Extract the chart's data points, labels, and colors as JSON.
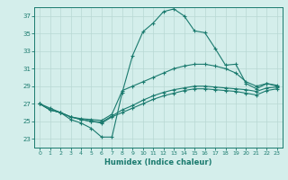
{
  "title": "",
  "xlabel": "Humidex (Indice chaleur)",
  "ylabel": "",
  "bg_color": "#d4eeeb",
  "line_color": "#1a7a6e",
  "grid_color": "#b8d8d4",
  "xlim": [
    -0.5,
    23.5
  ],
  "ylim": [
    22,
    38
  ],
  "yticks": [
    23,
    25,
    27,
    29,
    31,
    33,
    35,
    37
  ],
  "xticks": [
    0,
    1,
    2,
    3,
    4,
    5,
    6,
    7,
    8,
    9,
    10,
    11,
    12,
    13,
    14,
    15,
    16,
    17,
    18,
    19,
    20,
    21,
    22,
    23
  ],
  "series": [
    {
      "x": [
        0,
        1,
        2,
        3,
        4,
        5,
        6,
        7,
        8,
        9,
        10,
        11,
        12,
        13,
        14,
        15,
        16,
        17,
        18,
        19,
        20,
        21,
        22,
        23
      ],
      "y": [
        27,
        26.5,
        26,
        25.2,
        24.8,
        24.2,
        23.2,
        23.2,
        28.3,
        32.5,
        35.2,
        36.2,
        37.5,
        37.8,
        37.0,
        35.3,
        35.1,
        33.3,
        31.4,
        31.5,
        29.3,
        28.7,
        29.3,
        29.0
      ]
    },
    {
      "x": [
        0,
        1,
        2,
        3,
        4,
        5,
        6,
        7,
        8,
        9,
        10,
        11,
        12,
        13,
        14,
        15,
        16,
        17,
        18,
        19,
        20,
        21,
        22,
        23
      ],
      "y": [
        27.0,
        26.3,
        26.0,
        25.5,
        25.3,
        25.2,
        25.1,
        25.8,
        28.5,
        29.0,
        29.5,
        30.0,
        30.5,
        31.0,
        31.3,
        31.5,
        31.5,
        31.3,
        31.0,
        30.5,
        29.5,
        29.0,
        29.3,
        29.1
      ]
    },
    {
      "x": [
        0,
        1,
        2,
        3,
        4,
        5,
        6,
        7,
        8,
        9,
        10,
        11,
        12,
        13,
        14,
        15,
        16,
        17,
        18,
        19,
        20,
        21,
        22,
        23
      ],
      "y": [
        27.0,
        26.3,
        26.0,
        25.5,
        25.2,
        25.0,
        24.9,
        25.6,
        26.3,
        26.8,
        27.4,
        27.9,
        28.3,
        28.6,
        28.8,
        29.0,
        29.0,
        28.9,
        28.8,
        28.7,
        28.6,
        28.4,
        28.8,
        28.9
      ]
    },
    {
      "x": [
        0,
        1,
        2,
        3,
        4,
        5,
        6,
        7,
        8,
        9,
        10,
        11,
        12,
        13,
        14,
        15,
        16,
        17,
        18,
        19,
        20,
        21,
        22,
        23
      ],
      "y": [
        27.0,
        26.3,
        26.0,
        25.5,
        25.2,
        25.0,
        24.8,
        25.5,
        26.0,
        26.5,
        27.0,
        27.5,
        27.9,
        28.2,
        28.5,
        28.7,
        28.7,
        28.6,
        28.5,
        28.4,
        28.2,
        28.0,
        28.5,
        28.7
      ]
    }
  ]
}
